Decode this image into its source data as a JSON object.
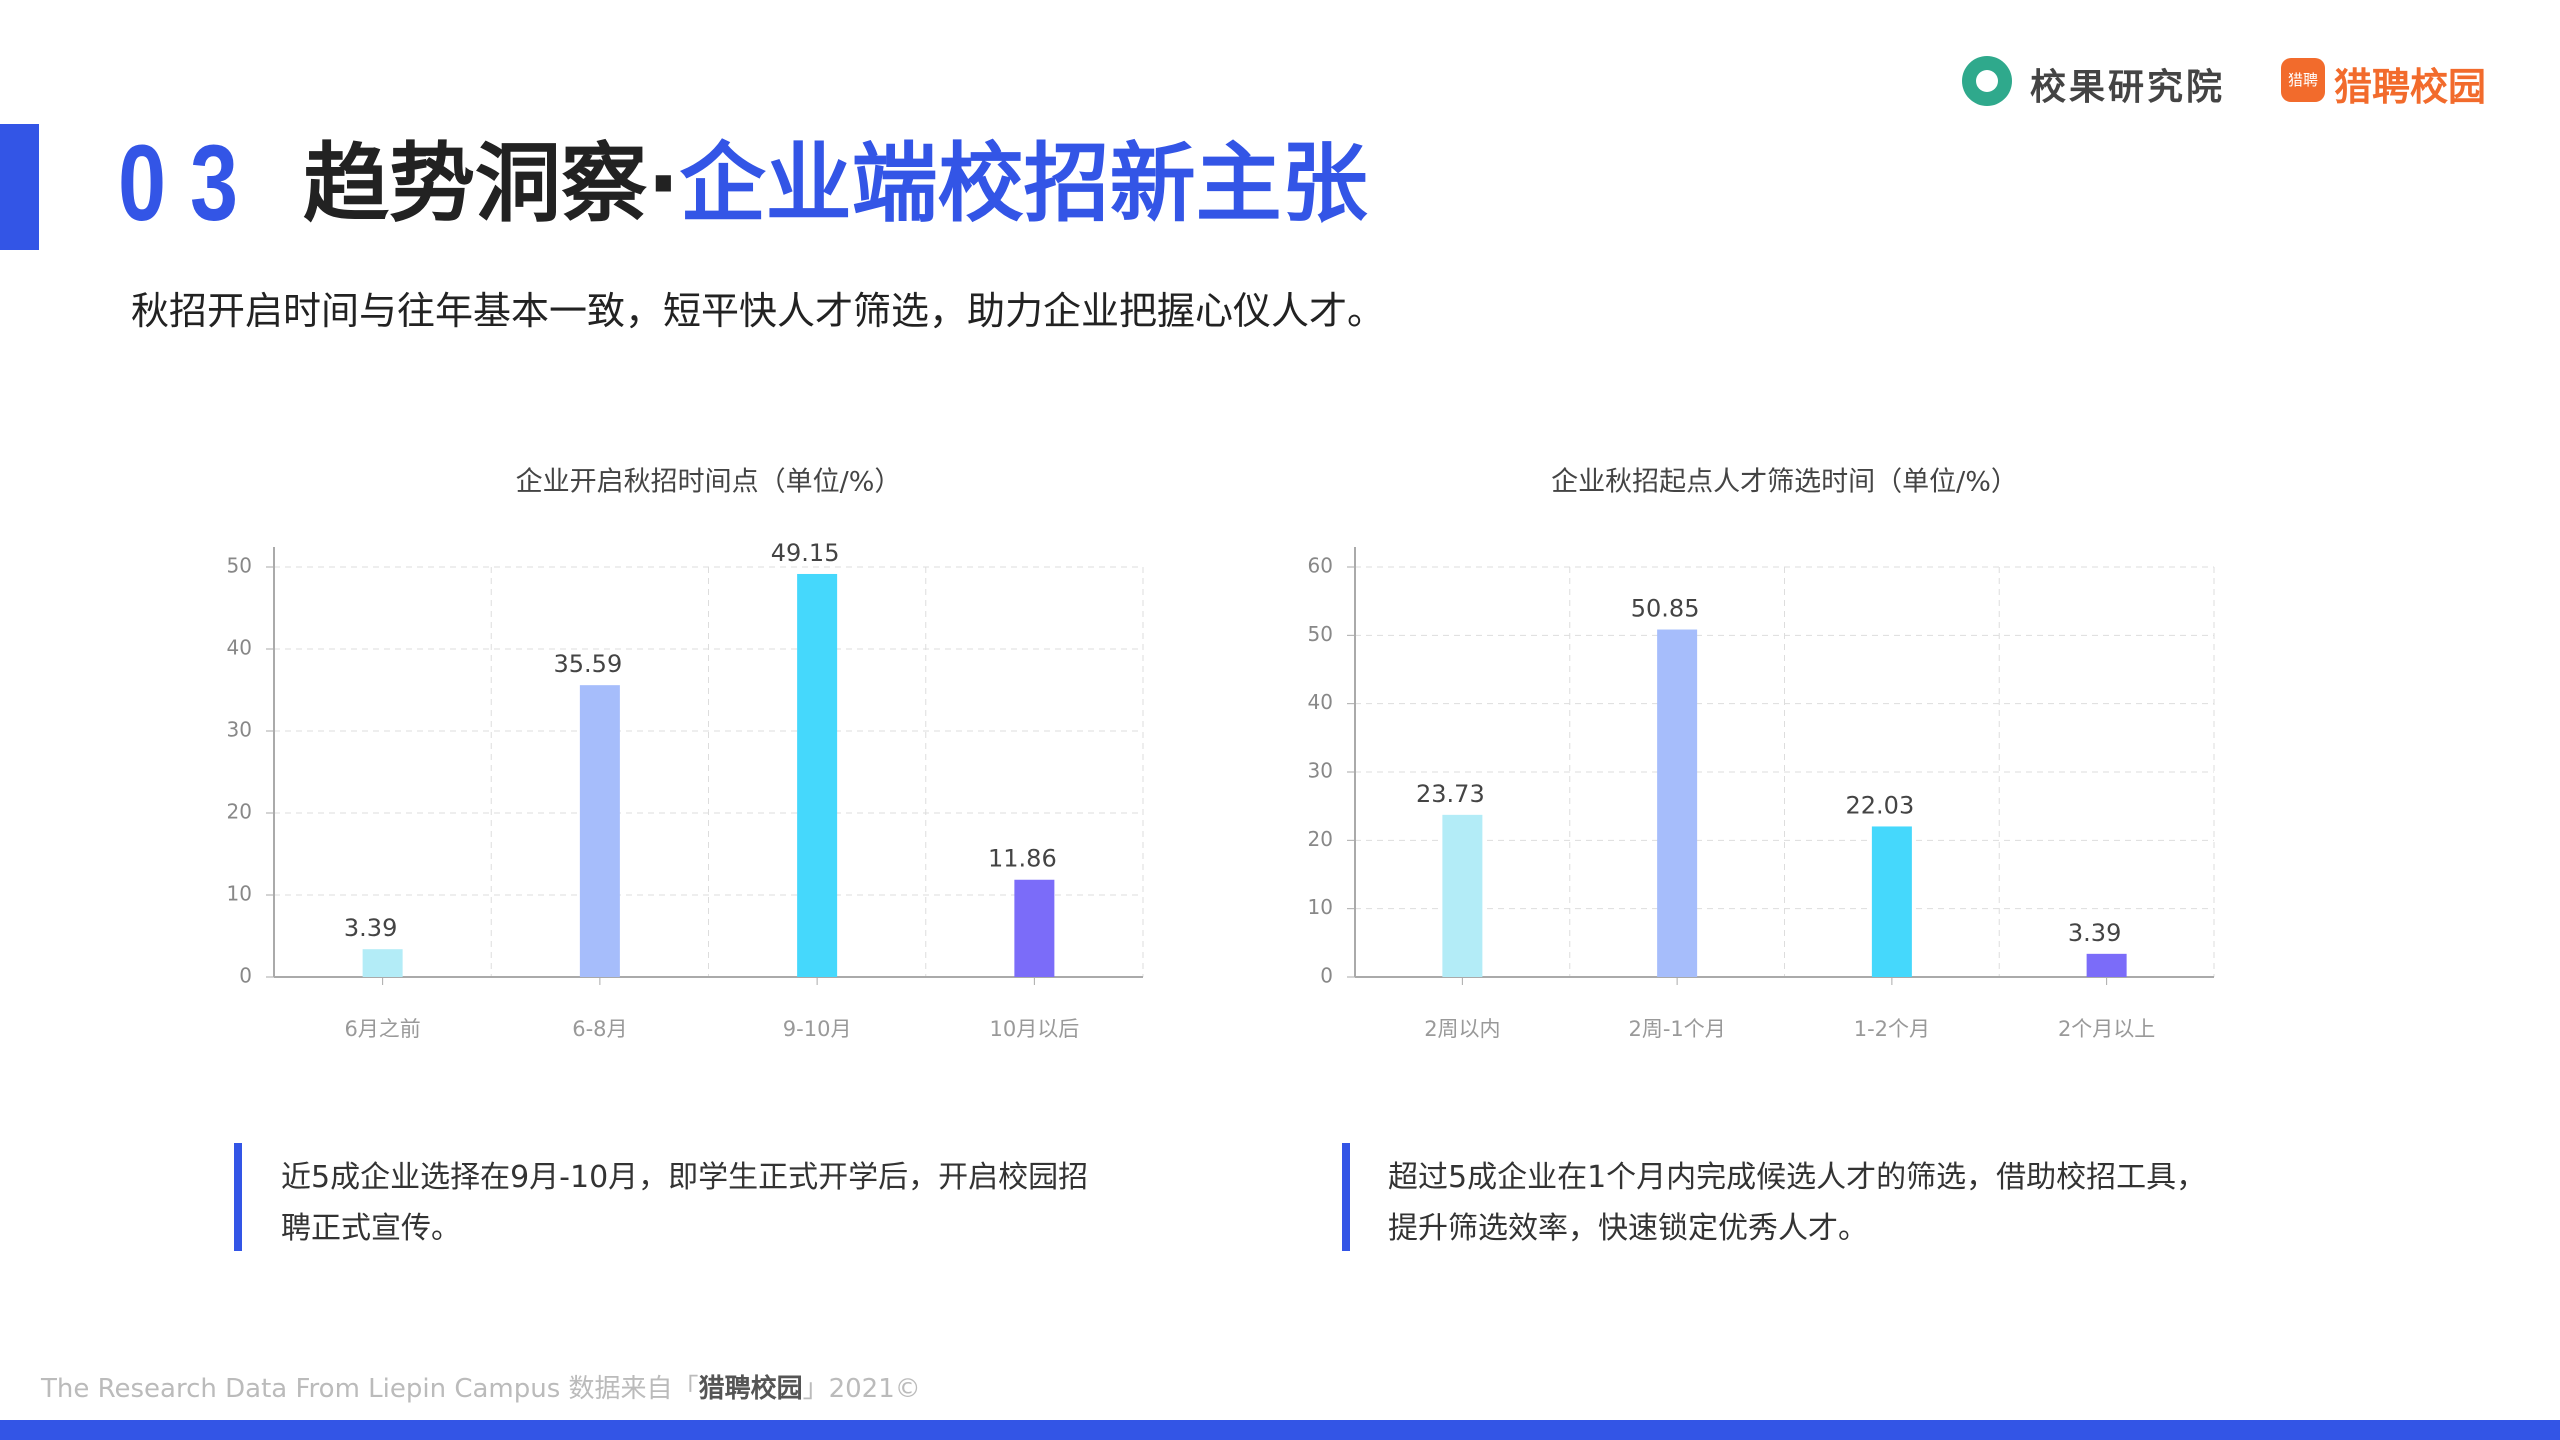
{
  "header": {
    "number": "0 3",
    "title_dark": "趋势洞察·",
    "title_blue": "企业端校招新主张",
    "subtitle": "秋招开启时间与往年基本一致，短平快人才筛选，助力企业把握心仪人才。",
    "logo1": "校果研究院",
    "logo2_icon": "猎聘",
    "logo2": "猎聘校园"
  },
  "chart_data": [
    {
      "type": "bar",
      "title": "企业开启秋招时间点（单位/%）",
      "categories": [
        "6月之前",
        "6-8月",
        "9-10月",
        "10月以后"
      ],
      "values": [
        3.39,
        35.59,
        49.15,
        11.86
      ],
      "colors": [
        "#b3ecf7",
        "#a6bdfb",
        "#45d8fc",
        "#7b6cf9"
      ],
      "ylim": [
        0,
        50
      ],
      "yticks": [
        0,
        10,
        20,
        30,
        40,
        50
      ],
      "grid": true
    },
    {
      "type": "bar",
      "title": "企业秋招起点人才筛选时间（单位/%）",
      "categories": [
        "2周以内",
        "2周-1个月",
        "1-2个月",
        "2个月以上"
      ],
      "values": [
        23.73,
        50.85,
        22.03,
        3.39
      ],
      "colors": [
        "#b3ecf7",
        "#a6bdfb",
        "#45d8fc",
        "#7b6cf9"
      ],
      "ylim": [
        0,
        60
      ],
      "yticks": [
        0,
        10,
        20,
        30,
        40,
        50,
        60
      ],
      "grid": true
    }
  ],
  "notes": [
    {
      "line1": "近5成企业选择在9月-10月，即学生正式开学后，开启校园招",
      "line2": "聘正式宣传。"
    },
    {
      "line1": "超过5成企业在1个月内完成候选人才的筛选，借助校招工具，",
      "line2": "提升筛选效率，快速锁定优秀人才。"
    }
  ],
  "footer": {
    "prefix": "The Research Data From Liepin Campus 数据来自「",
    "brand": "猎聘校园",
    "suffix": "」2021©"
  }
}
